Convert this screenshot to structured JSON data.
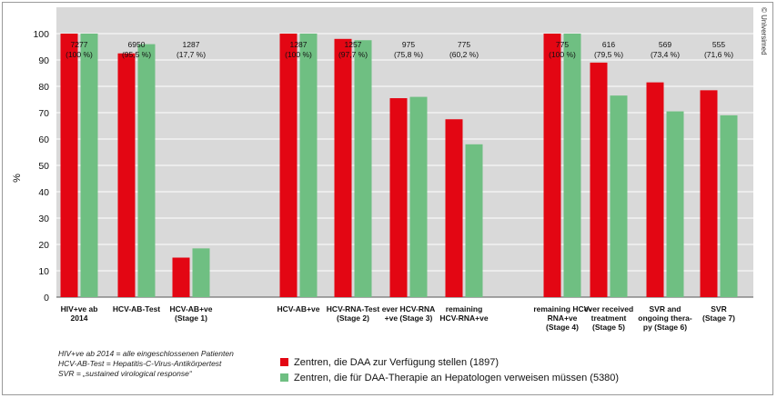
{
  "copyright": "© Universimed",
  "chart_data": {
    "type": "bar",
    "ylabel": "%",
    "ylim": [
      0,
      110
    ],
    "yticks": [
      0,
      10,
      20,
      30,
      40,
      50,
      60,
      70,
      80,
      90,
      100
    ],
    "grid": true,
    "background": "#d9d9d9",
    "colors": {
      "red": "#e30613",
      "green": "#6fbf82"
    },
    "categories": [
      {
        "label": [
          "HIV+ve ab",
          "2014"
        ],
        "count": "7277",
        "pct": "(100 %)",
        "group": 0
      },
      {
        "label": [
          "HCV-AB-Test"
        ],
        "count": "6950",
        "pct": "(95,5 %)",
        "group": 0
      },
      {
        "label": [
          "HCV-AB+ve",
          "(Stage 1)"
        ],
        "count": "1287",
        "pct": "(17,7 %)",
        "group": 0
      },
      {
        "label": [
          "HCV-AB+ve"
        ],
        "count": "1287",
        "pct": "(100 %)",
        "group": 1
      },
      {
        "label": [
          "HCV-RNA-Test",
          "(Stage 2)"
        ],
        "count": "1257",
        "pct": "(97,7 %)",
        "group": 1
      },
      {
        "label": [
          "ever HCV-RNA",
          "+ve (Stage 3)"
        ],
        "count": "975",
        "pct": "(75,8 %)",
        "group": 1
      },
      {
        "label": [
          "remaining",
          "HCV-RNA+ve"
        ],
        "count": "775",
        "pct": "(60,2 %)",
        "group": 1
      },
      {
        "label": [
          "remaining HCV-",
          "RNA+ve",
          "(Stage 4)"
        ],
        "count": "775",
        "pct": "(100 %)",
        "group": 2
      },
      {
        "label": [
          "ever received",
          "treatment",
          "(Stage 5)"
        ],
        "count": "616",
        "pct": "(79,5 %)",
        "group": 2
      },
      {
        "label": [
          "SVR and",
          "ongoing thera-",
          "py (Stage 6)"
        ],
        "count": "569",
        "pct": "(73,4 %)",
        "group": 2
      },
      {
        "label": [
          "SVR",
          "(Stage 7)"
        ],
        "count": "555",
        "pct": "(71,6 %)",
        "group": 2
      }
    ],
    "series": [
      {
        "name": "Zentren, die DAA zur Verfügung stellen (1897)",
        "color": "#e30613",
        "values": [
          100,
          92.5,
          15,
          100,
          98,
          75.5,
          67.5,
          100,
          89,
          81.5,
          78.5
        ]
      },
      {
        "name": "Zentren, die für DAA-Therapie an Hepatologen verweisen müssen (5380)",
        "color": "#6fbf82",
        "values": [
          100,
          96,
          18.5,
          100,
          97.5,
          76,
          58,
          100,
          76.5,
          70.5,
          69
        ]
      }
    ],
    "notes": [
      "HIV+ve ab 2014 = alle eingeschlossenen Patienten",
      "HCV-AB-Test = Hepatitis-C-Virus-Antikörpertest",
      "SVR = „sustained virological response“"
    ]
  }
}
